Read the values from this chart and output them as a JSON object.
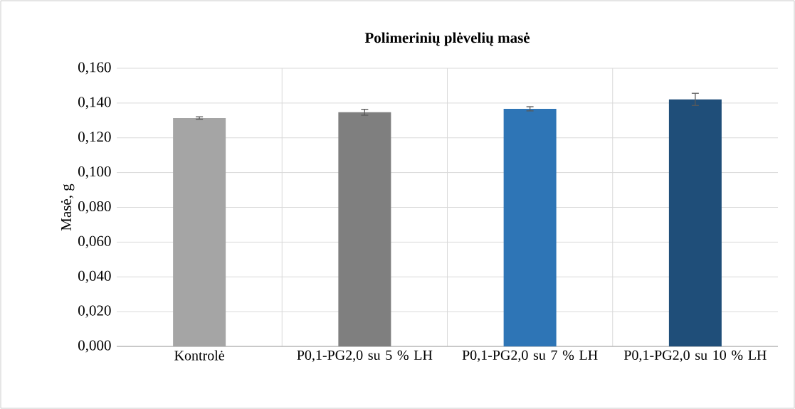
{
  "chart_data": {
    "type": "bar",
    "title": "**Polimerinių plėvelių masė**",
    "ylabel": "Masė, g",
    "categories": [
      "Kontrolė",
      "P0,1-PG2,0 su 5 % LH",
      "P0,1-PG2,0 su 7 % LH",
      "P0,1-PG2,0 su 10 % LH"
    ],
    "values": [
      0.1314,
      0.1347,
      0.1367,
      0.1421
    ],
    "errors": [
      0.0007,
      0.0017,
      0.0012,
      0.0035
    ],
    "colors": [
      "#a5a5a5",
      "#7f7f7f",
      "#2e75b6",
      "#1f4e79"
    ],
    "ylim": [
      0,
      0.16
    ],
    "yticks": [
      {
        "value": 0,
        "label": "0,000"
      },
      {
        "value": 0.02,
        "label": "0,020"
      },
      {
        "value": 0.04,
        "label": "0,040"
      },
      {
        "value": 0.06,
        "label": "0,060"
      },
      {
        "value": 0.08,
        "label": "0,080"
      },
      {
        "value": 0.1,
        "label": "0,100"
      },
      {
        "value": 0.12,
        "label": "0,120"
      },
      {
        "value": 0.14,
        "label": "0,140"
      },
      {
        "value": 0.16,
        "label": "0,160"
      }
    ],
    "grid": true
  }
}
